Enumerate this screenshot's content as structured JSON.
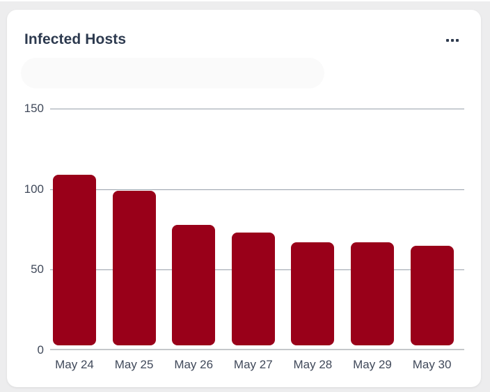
{
  "page": {
    "background_color": "#ededee"
  },
  "card": {
    "title": "Infected Hosts",
    "background_color": "#ffffff",
    "menu_icon": "ellipsis-horizontal"
  },
  "chart_data": {
    "type": "bar",
    "title": "Infected Hosts",
    "categories": [
      "May 24",
      "May 25",
      "May 26",
      "May 27",
      "May 28",
      "May 29",
      "May 30"
    ],
    "values": [
      109,
      99,
      78,
      73,
      67,
      67,
      65
    ],
    "xlabel": "",
    "ylabel": "",
    "ylim": [
      0,
      150
    ],
    "y_ticks": [
      0,
      50,
      100,
      150
    ],
    "grid": true,
    "legend_position": "none",
    "bar_color": "#990019",
    "grid_color": "#98a0ab",
    "axis_color": "#c5c7ca",
    "tick_label_color": "#40495a",
    "title_color": "#2d3a4f"
  }
}
